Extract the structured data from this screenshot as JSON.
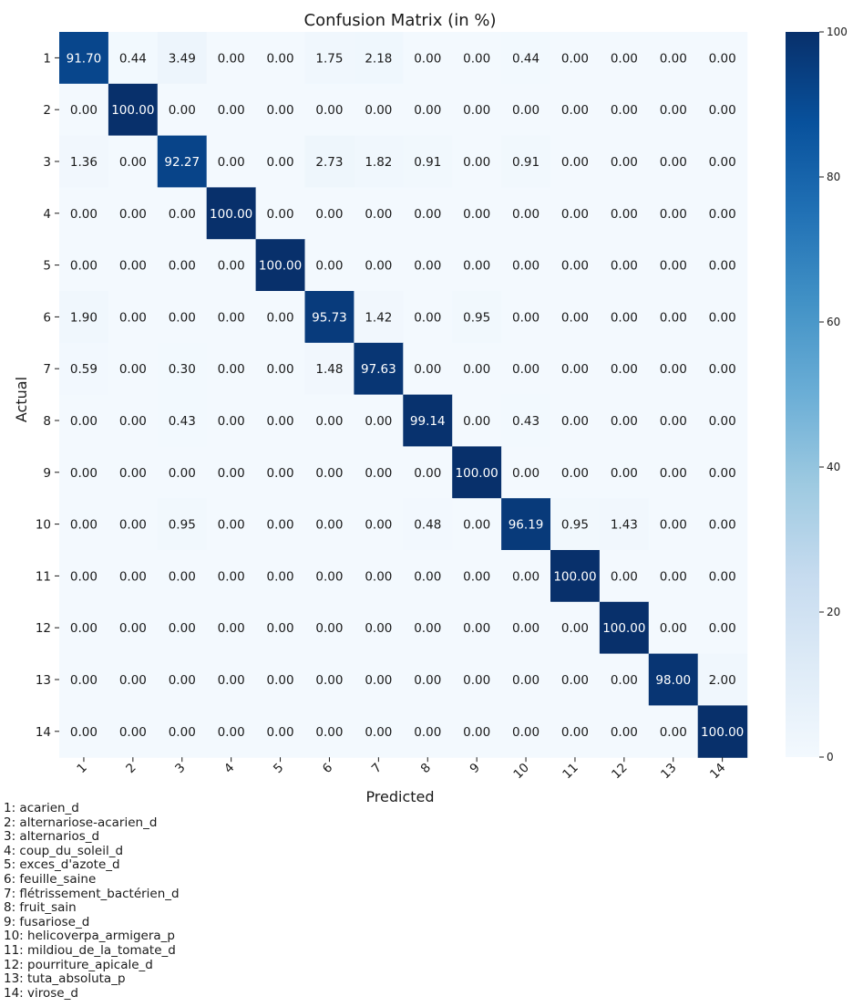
{
  "chart_data": {
    "type": "heatmap",
    "title": "Confusion Matrix (in %)",
    "xlabel": "Predicted",
    "ylabel": "Actual",
    "x_categories": [
      "1",
      "2",
      "3",
      "4",
      "5",
      "6",
      "7",
      "8",
      "9",
      "10",
      "11",
      "12",
      "13",
      "14"
    ],
    "y_categories": [
      "1",
      "2",
      "3",
      "4",
      "5",
      "6",
      "7",
      "8",
      "9",
      "10",
      "11",
      "12",
      "13",
      "14"
    ],
    "values": [
      [
        91.7,
        0.44,
        3.49,
        0.0,
        0.0,
        1.75,
        2.18,
        0.0,
        0.0,
        0.44,
        0.0,
        0.0,
        0.0,
        0.0
      ],
      [
        0.0,
        100.0,
        0.0,
        0.0,
        0.0,
        0.0,
        0.0,
        0.0,
        0.0,
        0.0,
        0.0,
        0.0,
        0.0,
        0.0
      ],
      [
        1.36,
        0.0,
        92.27,
        0.0,
        0.0,
        2.73,
        1.82,
        0.91,
        0.0,
        0.91,
        0.0,
        0.0,
        0.0,
        0.0
      ],
      [
        0.0,
        0.0,
        0.0,
        100.0,
        0.0,
        0.0,
        0.0,
        0.0,
        0.0,
        0.0,
        0.0,
        0.0,
        0.0,
        0.0
      ],
      [
        0.0,
        0.0,
        0.0,
        0.0,
        100.0,
        0.0,
        0.0,
        0.0,
        0.0,
        0.0,
        0.0,
        0.0,
        0.0,
        0.0
      ],
      [
        1.9,
        0.0,
        0.0,
        0.0,
        0.0,
        95.73,
        1.42,
        0.0,
        0.95,
        0.0,
        0.0,
        0.0,
        0.0,
        0.0
      ],
      [
        0.59,
        0.0,
        0.3,
        0.0,
        0.0,
        1.48,
        97.63,
        0.0,
        0.0,
        0.0,
        0.0,
        0.0,
        0.0,
        0.0
      ],
      [
        0.0,
        0.0,
        0.43,
        0.0,
        0.0,
        0.0,
        0.0,
        99.14,
        0.0,
        0.43,
        0.0,
        0.0,
        0.0,
        0.0
      ],
      [
        0.0,
        0.0,
        0.0,
        0.0,
        0.0,
        0.0,
        0.0,
        0.0,
        100.0,
        0.0,
        0.0,
        0.0,
        0.0,
        0.0
      ],
      [
        0.0,
        0.0,
        0.95,
        0.0,
        0.0,
        0.0,
        0.0,
        0.48,
        0.0,
        96.19,
        0.95,
        1.43,
        0.0,
        0.0
      ],
      [
        0.0,
        0.0,
        0.0,
        0.0,
        0.0,
        0.0,
        0.0,
        0.0,
        0.0,
        0.0,
        100.0,
        0.0,
        0.0,
        0.0
      ],
      [
        0.0,
        0.0,
        0.0,
        0.0,
        0.0,
        0.0,
        0.0,
        0.0,
        0.0,
        0.0,
        0.0,
        100.0,
        0.0,
        0.0
      ],
      [
        0.0,
        0.0,
        0.0,
        0.0,
        0.0,
        0.0,
        0.0,
        0.0,
        0.0,
        0.0,
        0.0,
        0.0,
        98.0,
        2.0
      ],
      [
        0.0,
        0.0,
        0.0,
        0.0,
        0.0,
        0.0,
        0.0,
        0.0,
        0.0,
        0.0,
        0.0,
        0.0,
        0.0,
        100.0
      ]
    ],
    "colorbar": {
      "range": [
        0,
        100
      ],
      "ticks": [
        0,
        20,
        40,
        60,
        80,
        100
      ],
      "colormap": "Blues"
    },
    "x_tick_rotation": 45,
    "grid": false
  },
  "legend": [
    "1: acarien_d",
    "2: alternariose-acarien_d",
    "3: alternarios_d",
    "4: coup_du_soleil_d",
    "5: exces_d'azote_d",
    "6: feuille_saine",
    "7: flétrissement_bactérien_d",
    "8: fruit_sain",
    "9: fusariose_d",
    "10: helicoverpa_armigera_p",
    "11: mildiou_de_la_tomate_d",
    "12: pourriture_apicale_d",
    "13: tuta_absoluta_p",
    "14: virose_d"
  ]
}
